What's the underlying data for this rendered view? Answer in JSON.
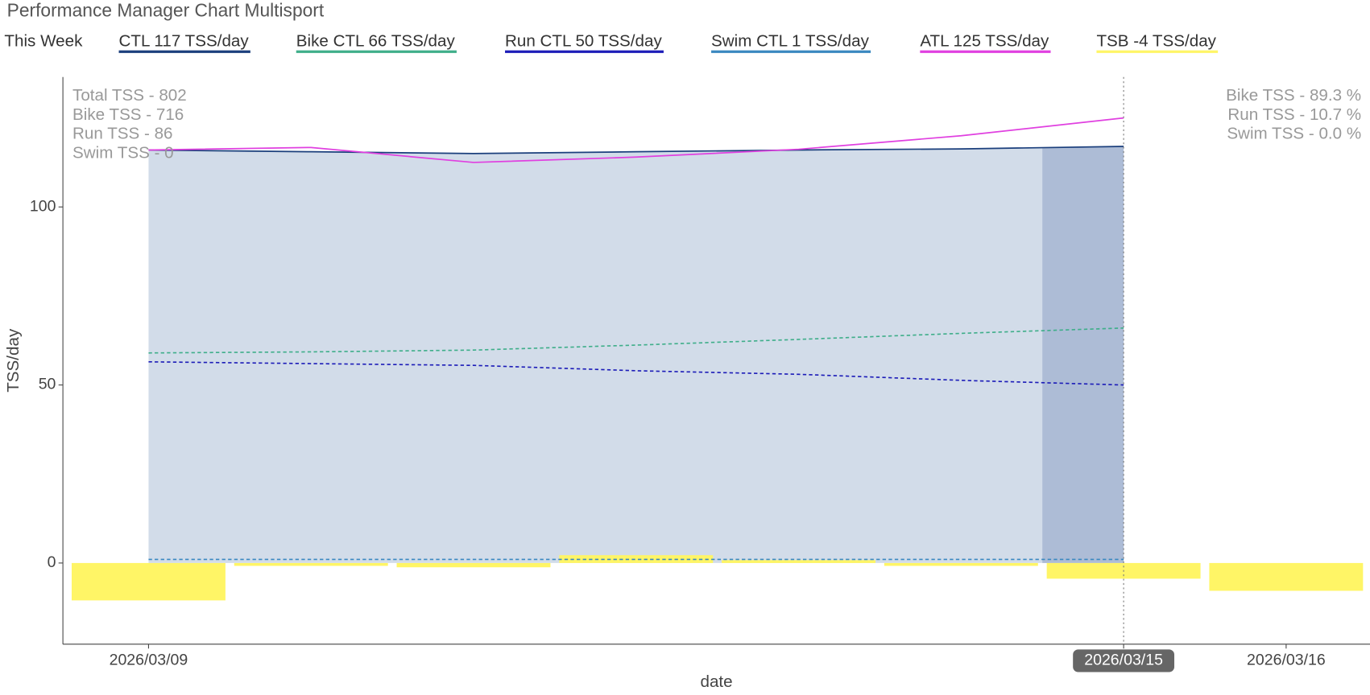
{
  "chart_data": {
    "type": "line",
    "title": "Performance Manager Chart Multisport",
    "legend_heading": "This Week",
    "x_label": "date",
    "y_label": "TSS/day",
    "categories": [
      "2026/03/09",
      null,
      null,
      null,
      null,
      null,
      "2026/03/15",
      "2026/03/16"
    ],
    "highlight_category": 6,
    "ylim": [
      -22.8,
      136.5
    ],
    "yticks": [
      0,
      50,
      100
    ],
    "grid": false,
    "series": [
      {
        "name": "CTL  117 TSS/day",
        "color": "#1b3f7c",
        "dash": false,
        "area": true,
        "values": [
          116,
          115.5,
          115,
          115.5,
          116,
          116.3,
          117,
          null
        ]
      },
      {
        "name": "Bike CTL  66 TSS/day",
        "color": "#3fae8a",
        "dash": true,
        "values": [
          59,
          59.3,
          59.8,
          61.2,
          62.8,
          64.5,
          66,
          null
        ]
      },
      {
        "name": "Run CTL  50 TSS/day",
        "color": "#1c1cb8",
        "dash": true,
        "values": [
          56.5,
          56,
          55.5,
          54,
          53,
          51.3,
          50,
          null
        ]
      },
      {
        "name": "Swim CTL  1 TSS/day",
        "color": "#3a88c0",
        "dash": true,
        "values": [
          1,
          1,
          1,
          1,
          1,
          1,
          1,
          null
        ]
      },
      {
        "name": "ATL  125 TSS/day",
        "color": "#e040e0",
        "dash": false,
        "values": [
          116,
          116.7,
          112.5,
          114,
          116.2,
          120,
          125,
          null
        ]
      },
      {
        "name": "TSB  -4 TSS/day",
        "color": "#fff566",
        "type": "bar",
        "values": [
          -10.5,
          -0.8,
          -1.2,
          2.2,
          0.8,
          -0.8,
          -4.4,
          -7.8
        ]
      }
    ],
    "annotations_left": [
      "Total TSS - 802",
      "Bike TSS - 716",
      "Run TSS - 86",
      "Swim TSS - 0"
    ],
    "annotations_right": [
      "Bike TSS - 89.3 %",
      "Run TSS - 10.7 %",
      "Swim TSS - 0.0 %"
    ]
  }
}
